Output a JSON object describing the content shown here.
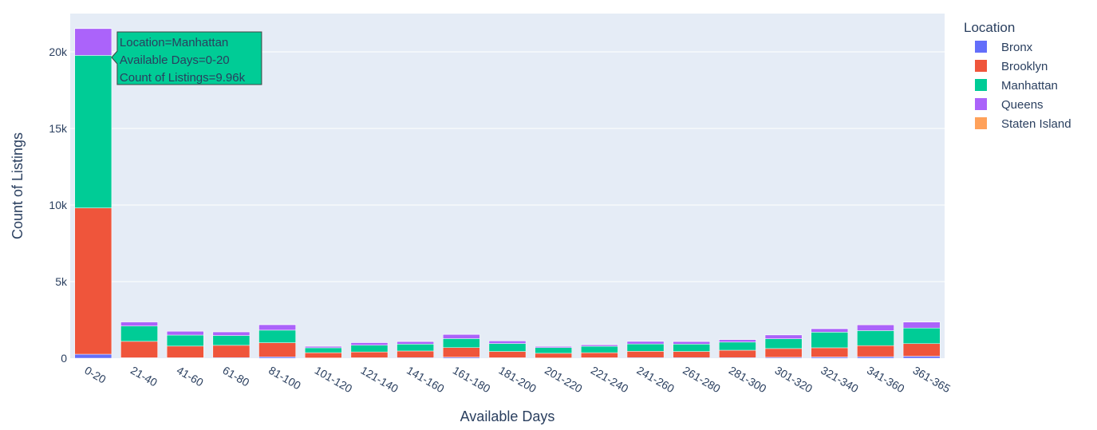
{
  "chart_data": {
    "type": "bar",
    "stacked": true,
    "xlabel": "Available Days",
    "ylabel": "Count of Listings",
    "ylim": [
      0,
      22500
    ],
    "yticks": [
      {
        "value": 0,
        "label": "0"
      },
      {
        "value": 5000,
        "label": "5k"
      },
      {
        "value": 10000,
        "label": "10k"
      },
      {
        "value": 15000,
        "label": "15k"
      },
      {
        "value": 20000,
        "label": "20k"
      }
    ],
    "grid": true,
    "legend_title": "Location",
    "legend_position": "right",
    "categories": [
      "0-20",
      "21-40",
      "41-60",
      "61-80",
      "81-100",
      "101-120",
      "121-140",
      "141-160",
      "161-180",
      "181-200",
      "201-220",
      "221-240",
      "241-260",
      "261-280",
      "281-300",
      "301-320",
      "321-340",
      "341-360",
      "361-365"
    ],
    "series": [
      {
        "name": "Bronx",
        "color": "#636efa",
        "values": [
          260,
          30,
          30,
          40,
          90,
          20,
          30,
          40,
          70,
          30,
          20,
          30,
          40,
          40,
          40,
          60,
          80,
          100,
          130
        ]
      },
      {
        "name": "Brooklyn",
        "color": "#EF553B",
        "values": [
          9550,
          1070,
          760,
          800,
          920,
          340,
          380,
          430,
          620,
          410,
          300,
          330,
          410,
          400,
          480,
          570,
          600,
          720,
          820
        ]
      },
      {
        "name": "Manhattan",
        "color": "#00cc96",
        "values": [
          9960,
          1000,
          720,
          640,
          820,
          320,
          440,
          450,
          590,
          520,
          370,
          420,
          480,
          480,
          530,
          640,
          1020,
          980,
          1020
        ]
      },
      {
        "name": "Queens",
        "color": "#ab63fa",
        "values": [
          1750,
          270,
          250,
          240,
          360,
          100,
          170,
          170,
          270,
          170,
          80,
          100,
          170,
          170,
          170,
          250,
          230,
          380,
          390
        ]
      },
      {
        "name": "Staten Island",
        "color": "#FFA15A",
        "values": [
          10,
          5,
          5,
          5,
          10,
          5,
          5,
          5,
          10,
          5,
          5,
          5,
          5,
          5,
          5,
          5,
          10,
          10,
          10
        ]
      }
    ],
    "tooltip": {
      "category": "0-20",
      "series": "Manhattan",
      "lines": [
        "Location=Manhattan",
        "Available Days=0-20",
        "Count of Listings=9.96k"
      ]
    }
  }
}
